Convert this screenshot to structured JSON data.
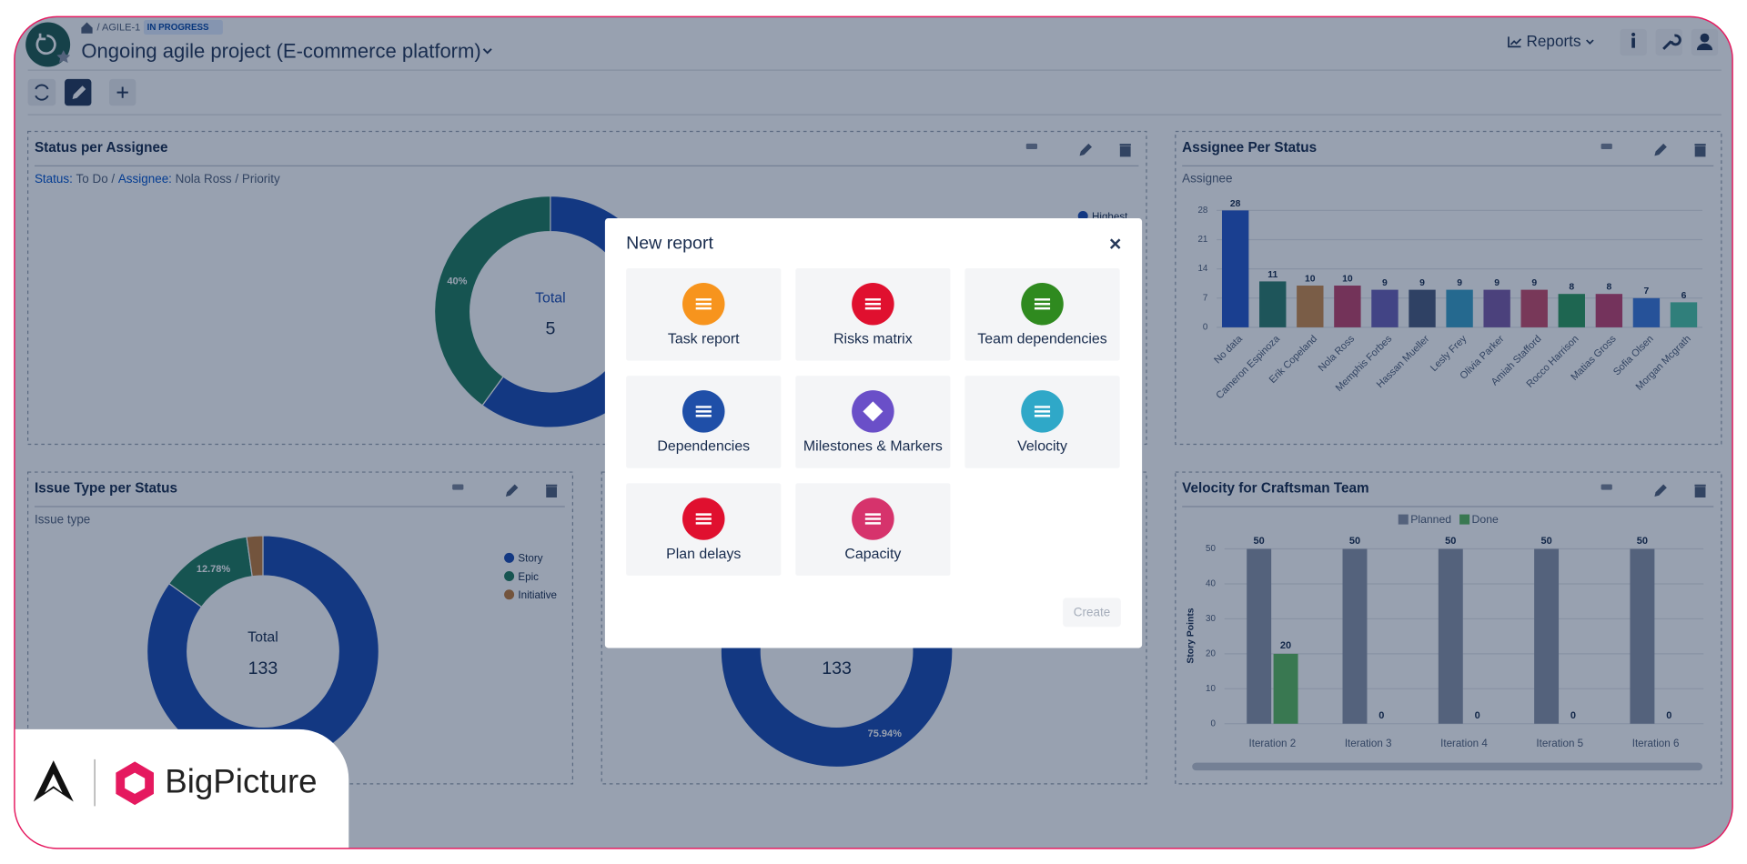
{
  "header": {
    "breadcrumb": "/ AGILE-1",
    "status": "IN PROGRESS",
    "title": "Ongoing agile project (E-commerce platform)",
    "reports": "Reports"
  },
  "widgets": [
    {
      "title": "Status per Assignee",
      "filter": [
        "Status:",
        "To Do /",
        "Assignee:",
        "Nola Ross / Priority"
      ],
      "chart": {
        "type": "donut",
        "center_label": "Total",
        "center_value": 5,
        "categories": [
          "Highest",
          null
        ],
        "values": [
          60,
          40
        ],
        "value_labels": [
          null,
          "40%"
        ],
        "colors": [
          "#1a4bb0",
          "#1f7a5c"
        ]
      }
    },
    {
      "title": "Assignee Per Status",
      "subtitle": "Assignee",
      "chart": {
        "type": "bar",
        "categories": [
          "No data",
          "Cameron Espinoza",
          "Erik Copeland",
          "Nola Ross",
          "Memphis Forbes",
          "Hassan Mueller",
          "Lesly Frey",
          "Olivia Parker",
          "Amiah Stafford",
          "Rocco Harrison",
          "Matias Gross",
          "Sofia Olsen",
          "Morgan Mcgrath"
        ],
        "values": [
          28,
          11,
          10,
          10,
          9,
          9,
          9,
          9,
          9,
          8,
          8,
          7,
          6
        ],
        "colors": [
          "#2656c8",
          "#2e7d6c",
          "#cc8a4a",
          "#c0436a",
          "#6b5fb5",
          "#4b5b7d",
          "#3a9fc7",
          "#7b5ba6",
          "#c94a69",
          "#2e9a5c",
          "#c2436f",
          "#3b78d8",
          "#4cc4a4"
        ],
        "ylim": [
          0,
          28
        ],
        "yticks": [
          0,
          7,
          14,
          21,
          28
        ],
        "grid": true
      }
    },
    {
      "title": "Issue Type per Status",
      "subtitle": "Issue type",
      "chart": {
        "type": "donut",
        "center_label": "Total",
        "center_value": 133,
        "categories": [
          "Story",
          "Epic",
          "Initiative"
        ],
        "values": [
          84.96,
          12.78,
          2.26
        ],
        "value_labels": [
          null,
          "12.78%",
          null
        ],
        "colors": [
          "#1a4bb0",
          "#1f7a5c",
          "#c07a3a"
        ]
      }
    },
    {
      "chart": {
        "type": "donut",
        "center_value": 133,
        "values": [
          75.94
        ],
        "value_labels": [
          "75.94%"
        ],
        "colors": [
          "#1a4bb0"
        ]
      }
    },
    {
      "title": "Velocity for Craftsman Team",
      "chart": {
        "type": "grouped_bar",
        "y_label": "Story Points",
        "categories": [
          "Iteration 2",
          "Iteration 3",
          "Iteration 4",
          "Iteration 5",
          "Iteration 6"
        ],
        "series": [
          {
            "name": "Planned",
            "color": "#8a93a6",
            "values": [
              50,
              50,
              50,
              50,
              50
            ]
          },
          {
            "name": "Done",
            "color": "#5cb85c",
            "values": [
              20,
              0,
              0,
              0,
              0
            ]
          }
        ],
        "ylim": [
          0,
          50
        ],
        "yticks": [
          0,
          10,
          20,
          30,
          40,
          50
        ],
        "grid": true
      }
    }
  ],
  "modal": {
    "title": "New report",
    "items": [
      {
        "label": "Task report",
        "color": "#f7941d"
      },
      {
        "label": "Risks matrix",
        "color": "#e0102f"
      },
      {
        "label": "Team dependencies",
        "color": "#2f8a1f"
      },
      {
        "label": "Dependencies",
        "color": "#1f4fa8"
      },
      {
        "label": "Milestones & Markers",
        "color": "#6a4fc8"
      },
      {
        "label": "Velocity",
        "color": "#2fa8c8"
      },
      {
        "label": "Plan delays",
        "color": "#e0102f"
      },
      {
        "label": "Capacity",
        "color": "#d6336c"
      }
    ],
    "create": "Create"
  },
  "logo": {
    "text": "BigPicture"
  }
}
